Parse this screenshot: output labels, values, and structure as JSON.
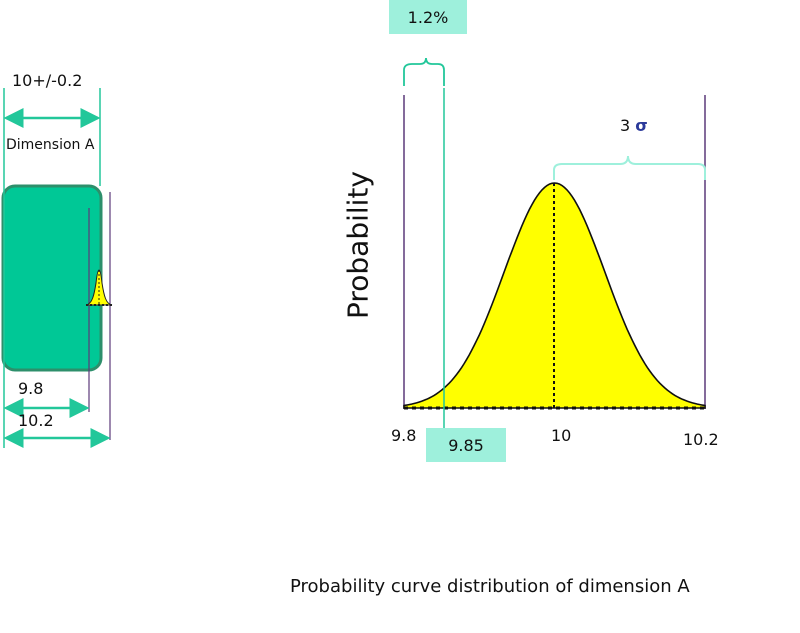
{
  "left_part": {
    "tolerance_label": "10+/-0.2",
    "dimension_label": "Dimension A",
    "min_label": "9.8",
    "max_label": "10.2"
  },
  "chart": {
    "ylabel": "Probability",
    "x_ticks": [
      "9.8",
      "10",
      "10.2"
    ],
    "highlight_tick": "9.85",
    "percent_box": "1.2%",
    "sigma_number": "3",
    "sigma_symbol": "σ",
    "caption": "Probability curve distribution of dimension A"
  },
  "chart_data": {
    "type": "area",
    "distribution": "normal",
    "mean": 10,
    "lower_limit": 9.8,
    "upper_limit": 10.2,
    "marked_value": 9.85,
    "tail_fraction_label": "1.2%",
    "spread_label": "3 σ"
  },
  "colors": {
    "part_fill": "#00c896",
    "part_border": "#2d8f6b",
    "curve_fill": "#ffff00",
    "accent": "#22c79a",
    "box_fill": "#9ef0dc",
    "limit_line": "#5c3a7a",
    "sigma": "#2b3a9a"
  }
}
